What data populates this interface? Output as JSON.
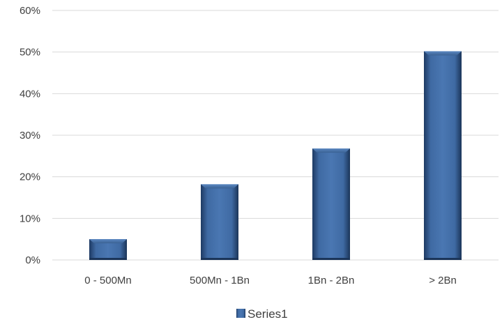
{
  "chart_data": {
    "type": "bar",
    "categories": [
      "0 - 500Mn",
      "500Mn - 1Bn",
      "1Bn - 2Bn",
      "> 2Bn"
    ],
    "series": [
      {
        "name": "Series1",
        "values": [
          5.0,
          18.2,
          26.8,
          50.2
        ],
        "color": "#3a6193"
      }
    ],
    "y_ticks": [
      "0%",
      "10%",
      "20%",
      "30%",
      "40%",
      "50%",
      "60%"
    ],
    "ylim": [
      0,
      60
    ],
    "y_unit": "%",
    "grid": true,
    "legend_position": "bottom"
  }
}
